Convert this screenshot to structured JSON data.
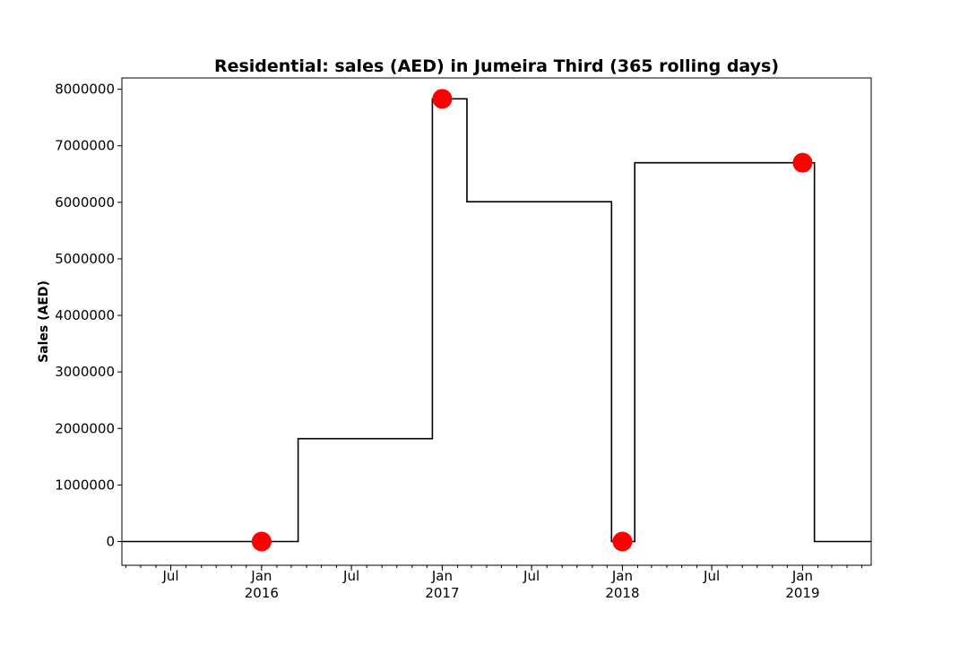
{
  "chart_data": {
    "type": "line",
    "drawstyle": "steps-post",
    "title": "Residential: sales (AED) in Jumeira Third (365 rolling days)",
    "xlabel": "",
    "ylabel": "Sales (AED)",
    "xlim": [
      "2015-03-24",
      "2019-05-20"
    ],
    "ylim": [
      -420000,
      8200000
    ],
    "grid": false,
    "y_ticks": [
      0,
      1000000,
      2000000,
      3000000,
      4000000,
      5000000,
      6000000,
      7000000,
      8000000
    ],
    "y_tick_labels": [
      "0",
      "1000000",
      "2000000",
      "3000000",
      "4000000",
      "5000000",
      "6000000",
      "7000000",
      "8000000"
    ],
    "x_major_ticks": [
      {
        "date": "2015-07-01",
        "label": "Jul"
      },
      {
        "date": "2016-01-01",
        "label": "Jan\n2016"
      },
      {
        "date": "2016-07-01",
        "label": "Jul"
      },
      {
        "date": "2017-01-01",
        "label": "Jan\n2017"
      },
      {
        "date": "2017-07-01",
        "label": "Jul"
      },
      {
        "date": "2018-01-01",
        "label": "Jan\n2018"
      },
      {
        "date": "2018-07-01",
        "label": "Jul"
      },
      {
        "date": "2019-01-01",
        "label": "Jan\n2019"
      }
    ],
    "series": [
      {
        "color": "#000000",
        "x": [
          "2015-03-24",
          "2016-03-15",
          "2016-12-12",
          "2017-02-20",
          "2017-12-10",
          "2018-01-26",
          "2019-01-25",
          "2019-05-20"
        ],
        "y": [
          0,
          1820000,
          7830000,
          6010000,
          0,
          6700000,
          0,
          0
        ]
      },
      {
        "color": "#ff0000",
        "marker": "circle",
        "x": [
          "2016-01-01",
          "2017-01-01",
          "2018-01-01",
          "2019-01-01"
        ],
        "y": [
          0,
          7830000,
          0,
          6700000
        ]
      }
    ]
  }
}
